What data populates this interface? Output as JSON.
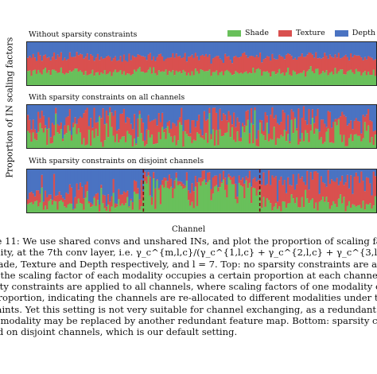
{
  "colors": {
    "shade": "#69c05b",
    "texture": "#d9504f",
    "depth": "#4a73c2"
  },
  "chart_data": {
    "type": "area",
    "ylabel": "Proportion of IN scaling factors",
    "xlabel": "Channel",
    "legend": [
      "Shade",
      "Texture",
      "Depth"
    ],
    "legend_position": "top-right",
    "panels": [
      {
        "title": "Without sparsity constraints",
        "mean": [
          0.3,
          0.36,
          0.34
        ],
        "segments": []
      },
      {
        "title": "With sparsity constraints on all channels",
        "mean": [
          0.28,
          0.35,
          0.37
        ],
        "segments": []
      },
      {
        "title": "With sparsity constraints on disjoint channels",
        "mean": [
          0.33,
          0.33,
          0.34
        ],
        "segments": [
          {
            "dominant": "Depth"
          },
          {
            "dominant": "Shade"
          },
          {
            "dominant": "Texture"
          }
        ]
      }
    ]
  },
  "caption_lines": [
    "re 11: We use shared convs and unshared INs, and plot the proportion of scaling factors fo",
    "ality, at the 7th conv layer, i.e. γ_c^{m,l,c}/(γ_c^{1,l,c} + γ_c^{2,l,c} + γ_c^{3,l,c}), where m = 1, 2, 3 correspo",
    "hade, Texture and Depth respectively, and l = 7. Top: no sparsity constraints are ap",
    "e the scaling factor of each modality occupies a certain proportion at each channel. M",
    "sity constraints are applied to all channels, where scaling factors of one modality could occ",
    " proportion, indicating the channels are re-allocated to different modalities under the sp",
    "raints. Yet this setting is not very suitable for channel exchanging, as a redundant feature",
    "e modality may be replaced by another redundant feature map. Bottom: sparsity constrain",
    "ed on disjoint channels, which is our default setting."
  ]
}
